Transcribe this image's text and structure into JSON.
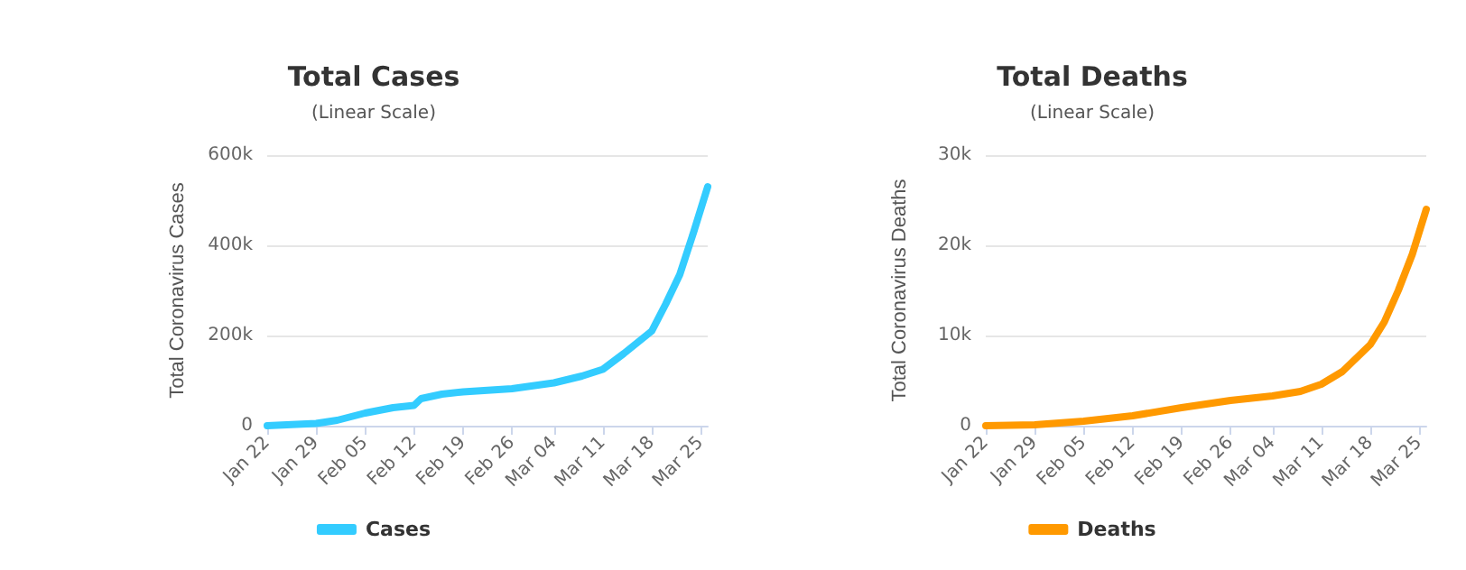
{
  "chart_data": [
    {
      "type": "line",
      "title": "Total Cases",
      "subtitle": "(Linear Scale)",
      "ylabel": "Total Coronavirus Cases",
      "xlim": [
        "--01-22",
        "--03-26"
      ],
      "xticks": [
        {
          "value": "--01-22",
          "label": "Jan 22"
        },
        {
          "value": "--01-29",
          "label": "Jan 29"
        },
        {
          "value": "--02-05",
          "label": "Feb 05"
        },
        {
          "value": "--02-12",
          "label": "Feb 12"
        },
        {
          "value": "--02-19",
          "label": "Feb 19"
        },
        {
          "value": "--02-26",
          "label": "Feb 26"
        },
        {
          "value": "--03-04",
          "label": "Mar 04"
        },
        {
          "value": "--03-11",
          "label": "Mar 11"
        },
        {
          "value": "--03-18",
          "label": "Mar 18"
        },
        {
          "value": "--03-25",
          "label": "Mar 25"
        }
      ],
      "ylim": [
        0,
        600000
      ],
      "yticks": [
        0,
        {
          "value": 200000,
          "label": "200k"
        },
        {
          "value": 400000,
          "label": "400k"
        },
        {
          "value": 600000,
          "label": "600k"
        }
      ],
      "grid": "y",
      "legend": "bottom",
      "marker": "none",
      "line_style": "solid",
      "x": [
        "--01-22",
        "--01-29",
        "--02-01",
        "--02-05",
        "--02-09",
        "--02-12",
        "--02-13",
        "--02-16",
        "--02-19",
        "--02-26",
        "--03-04",
        "--03-08",
        "--03-11",
        "--03-14",
        "--03-18",
        "--03-20",
        "--03-22",
        "--03-24",
        "--03-26"
      ],
      "series": [
        {
          "name": "Cases",
          "color": "#33ccff",
          "values": [
            0,
            5000,
            12000,
            28000,
            40000,
            45000,
            60000,
            70000,
            75000,
            82000,
            95000,
            110000,
            125000,
            160000,
            210000,
            270000,
            335000,
            430000,
            530000
          ]
        }
      ]
    },
    {
      "type": "line",
      "title": "Total Deaths",
      "subtitle": "(Linear Scale)",
      "ylabel": "Total Coronavirus Deaths",
      "xlim": [
        "--01-22",
        "--03-26"
      ],
      "xticks": [
        {
          "value": "--01-22",
          "label": "Jan 22"
        },
        {
          "value": "--01-29",
          "label": "Jan 29"
        },
        {
          "value": "--02-05",
          "label": "Feb 05"
        },
        {
          "value": "--02-12",
          "label": "Feb 12"
        },
        {
          "value": "--02-19",
          "label": "Feb 19"
        },
        {
          "value": "--02-26",
          "label": "Feb 26"
        },
        {
          "value": "--03-04",
          "label": "Mar 04"
        },
        {
          "value": "--03-11",
          "label": "Mar 11"
        },
        {
          "value": "--03-18",
          "label": "Mar 18"
        },
        {
          "value": "--03-25",
          "label": "Mar 25"
        }
      ],
      "ylim": [
        0,
        30000
      ],
      "yticks": [
        0,
        {
          "value": 10000,
          "label": "10k"
        },
        {
          "value": 20000,
          "label": "20k"
        },
        {
          "value": 30000,
          "label": "30k"
        }
      ],
      "grid": "y",
      "legend": "bottom",
      "marker": "none",
      "line_style": "solid",
      "x": [
        "--01-22",
        "--01-29",
        "--02-05",
        "--02-12",
        "--02-19",
        "--02-26",
        "--03-04",
        "--03-08",
        "--03-11",
        "--03-14",
        "--03-18",
        "--03-20",
        "--03-22",
        "--03-24",
        "--03-26"
      ],
      "series": [
        {
          "name": "Deaths",
          "color": "#ff9900",
          "values": [
            0,
            100,
            500,
            1100,
            2000,
            2800,
            3300,
            3800,
            4600,
            6000,
            9000,
            11500,
            15000,
            19000,
            24000
          ]
        }
      ]
    }
  ]
}
